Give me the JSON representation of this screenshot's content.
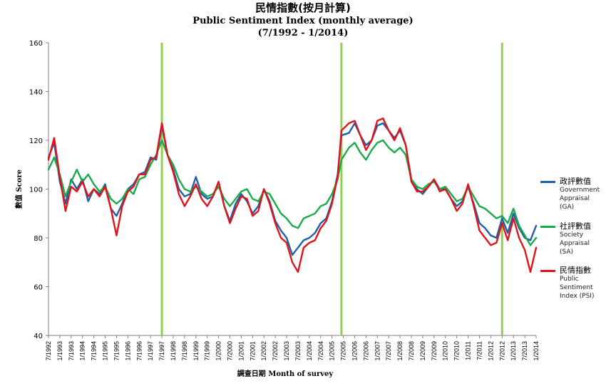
{
  "title": {
    "line1": "民情指數(按月計算)",
    "line2": "Public Sentiment Index (monthly average)",
    "line3": "(7/1992 - 1/2014)"
  },
  "legend": [
    {
      "zh": "政評數值",
      "en": [
        "Government",
        "Appraisal",
        "(GA)"
      ],
      "color": "#1f5fa8"
    },
    {
      "zh": "社評數值",
      "en": [
        "Society",
        "Appraisal",
        "(SA)"
      ],
      "color": "#1aaa4a"
    },
    {
      "zh": "民情指數",
      "en": [
        "Public",
        "Sentiment",
        "Index (PSI)"
      ],
      "color": "#e0141a"
    }
  ],
  "chart_data": {
    "type": "line",
    "title": "Public Sentiment Index (monthly average)",
    "xlabel": "調查日期  Month of survey",
    "ylabel": "數值 Score",
    "ylim": [
      40,
      160
    ],
    "yticks": [
      40,
      60,
      80,
      100,
      120,
      140,
      160
    ],
    "xlim": [
      "7/1992",
      "1/2014"
    ],
    "xticks": [
      "7/1992",
      "1/1993",
      "7/1993",
      "1/1994",
      "7/1994",
      "1/1995",
      "7/1995",
      "1/1996",
      "7/1996",
      "1/1997",
      "7/1997",
      "1/1998",
      "7/1998",
      "1/1999",
      "7/1999",
      "1/2000",
      "7/2000",
      "1/2001",
      "7/2001",
      "1/2002",
      "7/2002",
      "1/2003",
      "7/2003",
      "1/2004",
      "7/2004",
      "1/2005",
      "7/2005",
      "1/2006",
      "7/2006",
      "1/2007",
      "7/2007",
      "1/2008",
      "7/2008",
      "1/2009",
      "7/2009",
      "1/2010",
      "7/2010",
      "1/2011",
      "7/2011",
      "1/2012",
      "7/2012",
      "1/2013",
      "7/2013",
      "1/2014"
    ],
    "vertical_markers": [
      "7/1997",
      "6/2005",
      "7/2012"
    ],
    "marker_color": "#8fd14f",
    "grid": false,
    "legend_position": "right",
    "series": [
      {
        "name": "政評數值 Government Appraisal (GA)",
        "color": "#1f5fa8",
        "points": [
          [
            "7/1992",
            113
          ],
          [
            "10/1992",
            119
          ],
          [
            "1/1993",
            103
          ],
          [
            "4/1993",
            94
          ],
          [
            "7/1993",
            104
          ],
          [
            "10/1993",
            100
          ],
          [
            "1/1994",
            104
          ],
          [
            "4/1994",
            95
          ],
          [
            "7/1994",
            100
          ],
          [
            "10/1994",
            98
          ],
          [
            "1/1995",
            102
          ],
          [
            "4/1995",
            92
          ],
          [
            "7/1995",
            89
          ],
          [
            "10/1995",
            94
          ],
          [
            "1/1996",
            100
          ],
          [
            "4/1996",
            102
          ],
          [
            "7/1996",
            106
          ],
          [
            "10/1996",
            107
          ],
          [
            "1/1997",
            113
          ],
          [
            "4/1997",
            112
          ],
          [
            "7/1997",
            126
          ],
          [
            "10/1997",
            114
          ],
          [
            "1/1998",
            108
          ],
          [
            "4/1998",
            100
          ],
          [
            "7/1998",
            97
          ],
          [
            "10/1998",
            98
          ],
          [
            "1/1999",
            105
          ],
          [
            "4/1999",
            98
          ],
          [
            "7/1999",
            96
          ],
          [
            "10/1999",
            97
          ],
          [
            "1/2000",
            103
          ],
          [
            "4/2000",
            93
          ],
          [
            "7/2000",
            87
          ],
          [
            "10/2000",
            94
          ],
          [
            "1/2001",
            98
          ],
          [
            "4/2001",
            95
          ],
          [
            "7/2001",
            90
          ],
          [
            "10/2001",
            93
          ],
          [
            "1/2002",
            100
          ],
          [
            "4/2002",
            95
          ],
          [
            "7/2002",
            87
          ],
          [
            "10/2002",
            83
          ],
          [
            "1/2003",
            80
          ],
          [
            "4/2003",
            73
          ],
          [
            "7/2003",
            76
          ],
          [
            "10/2003",
            79
          ],
          [
            "1/2004",
            80
          ],
          [
            "4/2004",
            82
          ],
          [
            "7/2004",
            86
          ],
          [
            "10/2004",
            88
          ],
          [
            "1/2005",
            95
          ],
          [
            "4/2005",
            106
          ],
          [
            "6/2005",
            122
          ],
          [
            "10/2005",
            123
          ],
          [
            "1/2006",
            127
          ],
          [
            "4/2006",
            122
          ],
          [
            "7/2006",
            118
          ],
          [
            "10/2006",
            120
          ],
          [
            "1/2007",
            126
          ],
          [
            "4/2007",
            127
          ],
          [
            "7/2007",
            124
          ],
          [
            "10/2007",
            121
          ],
          [
            "1/2008",
            124
          ],
          [
            "4/2008",
            118
          ],
          [
            "7/2008",
            104
          ],
          [
            "10/2008",
            100
          ],
          [
            "1/2009",
            98
          ],
          [
            "4/2009",
            101
          ],
          [
            "7/2009",
            104
          ],
          [
            "10/2009",
            100
          ],
          [
            "1/2010",
            100
          ],
          [
            "4/2010",
            96
          ],
          [
            "7/2010",
            93
          ],
          [
            "10/2010",
            95
          ],
          [
            "1/2011",
            101
          ],
          [
            "4/2011",
            94
          ],
          [
            "7/2011",
            86
          ],
          [
            "10/2011",
            84
          ],
          [
            "1/2012",
            81
          ],
          [
            "4/2012",
            80
          ],
          [
            "7/2012",
            88
          ],
          [
            "10/2012",
            82
          ],
          [
            "1/2013",
            90
          ],
          [
            "4/2013",
            84
          ],
          [
            "7/2013",
            80
          ],
          [
            "10/2013",
            79
          ],
          [
            "1/2014",
            85
          ]
        ]
      },
      {
        "name": "社評數值 Society Appraisal (SA)",
        "color": "#1aaa4a",
        "points": [
          [
            "7/1992",
            108
          ],
          [
            "10/1992",
            113
          ],
          [
            "1/1993",
            106
          ],
          [
            "4/1993",
            97
          ],
          [
            "7/1993",
            103
          ],
          [
            "10/1993",
            108
          ],
          [
            "1/1994",
            103
          ],
          [
            "4/1994",
            106
          ],
          [
            "7/1994",
            102
          ],
          [
            "10/1994",
            99
          ],
          [
            "1/1995",
            101
          ],
          [
            "4/1995",
            96
          ],
          [
            "7/1995",
            94
          ],
          [
            "10/1995",
            96
          ],
          [
            "1/1996",
            100
          ],
          [
            "4/1996",
            98
          ],
          [
            "7/1996",
            104
          ],
          [
            "10/1996",
            105
          ],
          [
            "1/1997",
            110
          ],
          [
            "4/1997",
            114
          ],
          [
            "7/1997",
            120
          ],
          [
            "10/1997",
            114
          ],
          [
            "1/1998",
            110
          ],
          [
            "4/1998",
            104
          ],
          [
            "7/1998",
            100
          ],
          [
            "10/1998",
            99
          ],
          [
            "1/1999",
            101
          ],
          [
            "4/1999",
            99
          ],
          [
            "7/1999",
            97
          ],
          [
            "10/1999",
            98
          ],
          [
            "1/2000",
            101
          ],
          [
            "4/2000",
            96
          ],
          [
            "7/2000",
            93
          ],
          [
            "10/2000",
            96
          ],
          [
            "1/2001",
            99
          ],
          [
            "4/2001",
            100
          ],
          [
            "7/2001",
            96
          ],
          [
            "10/2001",
            95
          ],
          [
            "1/2002",
            99
          ],
          [
            "4/2002",
            98
          ],
          [
            "7/2002",
            94
          ],
          [
            "10/2002",
            90
          ],
          [
            "1/2003",
            88
          ],
          [
            "4/2003",
            85
          ],
          [
            "7/2003",
            84
          ],
          [
            "10/2003",
            88
          ],
          [
            "1/2004",
            89
          ],
          [
            "4/2004",
            90
          ],
          [
            "7/2004",
            93
          ],
          [
            "10/2004",
            94
          ],
          [
            "1/2005",
            98
          ],
          [
            "4/2005",
            104
          ],
          [
            "6/2005",
            112
          ],
          [
            "10/2005",
            117
          ],
          [
            "1/2006",
            119
          ],
          [
            "4/2006",
            115
          ],
          [
            "7/2006",
            112
          ],
          [
            "10/2006",
            116
          ],
          [
            "1/2007",
            119
          ],
          [
            "4/2007",
            120
          ],
          [
            "7/2007",
            117
          ],
          [
            "10/2007",
            115
          ],
          [
            "1/2008",
            117
          ],
          [
            "4/2008",
            114
          ],
          [
            "7/2008",
            104
          ],
          [
            "10/2008",
            101
          ],
          [
            "1/2009",
            100
          ],
          [
            "4/2009",
            102
          ],
          [
            "7/2009",
            103
          ],
          [
            "10/2009",
            100
          ],
          [
            "1/2010",
            101
          ],
          [
            "4/2010",
            98
          ],
          [
            "7/2010",
            95
          ],
          [
            "10/2010",
            96
          ],
          [
            "1/2011",
            101
          ],
          [
            "4/2011",
            97
          ],
          [
            "7/2011",
            93
          ],
          [
            "10/2011",
            92
          ],
          [
            "1/2012",
            90
          ],
          [
            "4/2012",
            88
          ],
          [
            "7/2012",
            89
          ],
          [
            "10/2012",
            86
          ],
          [
            "1/2013",
            92
          ],
          [
            "4/2013",
            85
          ],
          [
            "7/2013",
            81
          ],
          [
            "10/2013",
            77
          ],
          [
            "1/2014",
            80
          ]
        ]
      },
      {
        "name": "民情指數 Public Sentiment Index (PSI)",
        "color": "#e0141a",
        "points": [
          [
            "7/1992",
            112
          ],
          [
            "10/1992",
            121
          ],
          [
            "1/1993",
            105
          ],
          [
            "4/1993",
            91
          ],
          [
            "7/1993",
            101
          ],
          [
            "10/1993",
            99
          ],
          [
            "1/1994",
            103
          ],
          [
            "4/1994",
            97
          ],
          [
            "7/1994",
            100
          ],
          [
            "10/1994",
            97
          ],
          [
            "1/1995",
            101
          ],
          [
            "4/1995",
            92
          ],
          [
            "7/1995",
            81
          ],
          [
            "10/1995",
            93
          ],
          [
            "1/1996",
            99
          ],
          [
            "4/1996",
            101
          ],
          [
            "7/1996",
            106
          ],
          [
            "10/1996",
            106
          ],
          [
            "1/1997",
            112
          ],
          [
            "4/1997",
            113
          ],
          [
            "7/1997",
            127
          ],
          [
            "10/1997",
            114
          ],
          [
            "1/1998",
            107
          ],
          [
            "4/1998",
            98
          ],
          [
            "7/1998",
            93
          ],
          [
            "10/1998",
            97
          ],
          [
            "1/1999",
            102
          ],
          [
            "4/1999",
            96
          ],
          [
            "7/1999",
            93
          ],
          [
            "10/1999",
            97
          ],
          [
            "1/2000",
            103
          ],
          [
            "4/2000",
            93
          ],
          [
            "7/2000",
            86
          ],
          [
            "10/2000",
            92
          ],
          [
            "1/2001",
            97
          ],
          [
            "4/2001",
            96
          ],
          [
            "7/2001",
            89
          ],
          [
            "10/2001",
            91
          ],
          [
            "1/2002",
            100
          ],
          [
            "4/2002",
            94
          ],
          [
            "7/2002",
            86
          ],
          [
            "10/2002",
            80
          ],
          [
            "1/2003",
            78
          ],
          [
            "4/2003",
            70
          ],
          [
            "7/2003",
            66
          ],
          [
            "10/2003",
            76
          ],
          [
            "1/2004",
            78
          ],
          [
            "4/2004",
            79
          ],
          [
            "7/2004",
            84
          ],
          [
            "10/2004",
            87
          ],
          [
            "1/2005",
            94
          ],
          [
            "4/2005",
            105
          ],
          [
            "6/2005",
            124
          ],
          [
            "10/2005",
            127
          ],
          [
            "1/2006",
            128
          ],
          [
            "4/2006",
            122
          ],
          [
            "7/2006",
            116
          ],
          [
            "10/2006",
            120
          ],
          [
            "1/2007",
            128
          ],
          [
            "4/2007",
            129
          ],
          [
            "7/2007",
            124
          ],
          [
            "10/2007",
            120
          ],
          [
            "1/2008",
            125
          ],
          [
            "4/2008",
            118
          ],
          [
            "7/2008",
            103
          ],
          [
            "10/2008",
            99
          ],
          [
            "1/2009",
            99
          ],
          [
            "4/2009",
            101
          ],
          [
            "7/2009",
            104
          ],
          [
            "10/2009",
            99
          ],
          [
            "1/2010",
            100
          ],
          [
            "4/2010",
            96
          ],
          [
            "7/2010",
            91
          ],
          [
            "10/2010",
            94
          ],
          [
            "1/2011",
            102
          ],
          [
            "4/2011",
            93
          ],
          [
            "7/2011",
            83
          ],
          [
            "10/2011",
            80
          ],
          [
            "1/2012",
            77
          ],
          [
            "4/2012",
            78
          ],
          [
            "7/2012",
            86
          ],
          [
            "10/2012",
            79
          ],
          [
            "1/2013",
            88
          ],
          [
            "4/2013",
            80
          ],
          [
            "7/2013",
            75
          ],
          [
            "10/2013",
            66
          ],
          [
            "1/2014",
            76
          ]
        ]
      }
    ]
  }
}
